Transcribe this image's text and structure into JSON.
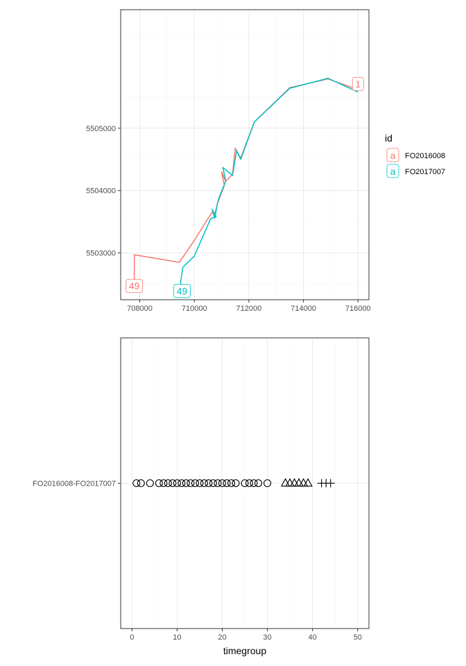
{
  "colors": {
    "FO2016008": "#F8766D",
    "FO2017007": "#00BFC4",
    "grid_major": "#EBEBEB",
    "grid_minor": "#F5F5F5",
    "frame": "#333333",
    "shape": "#000000"
  },
  "chart_data": [
    {
      "type": "line",
      "xlim": [
        707300,
        716400
      ],
      "ylim": [
        5502250,
        5506900
      ],
      "x_ticks": [
        708000,
        710000,
        712000,
        714000,
        716000
      ],
      "x_tick_labels": [
        "708000",
        "710000",
        "712000",
        "714000",
        "716000"
      ],
      "y_ticks": [
        5503000,
        5504000,
        5505000
      ],
      "y_tick_labels": [
        "5503000",
        "5504000",
        "5505000"
      ],
      "grid": true,
      "legend": {
        "title": "id",
        "placement": "right",
        "key_glyph": "a",
        "entries": [
          "FO2016008",
          "FO2017007"
        ]
      },
      "series": [
        {
          "name": "FO2016008",
          "x": [
            716000,
            714900,
            713500,
            712200,
            711700,
            711500,
            711400,
            711150,
            711000,
            711100,
            710900,
            710850,
            710750,
            710650,
            710500,
            710000,
            709450,
            707800,
            707800
          ],
          "y": [
            5505620,
            5505790,
            5505650,
            5505100,
            5504520,
            5504680,
            5504260,
            5504150,
            5504300,
            5504080,
            5503850,
            5503800,
            5503620,
            5503650,
            5503550,
            5503200,
            5502850,
            5502970,
            5502470
          ]
        },
        {
          "name": "FO2017007",
          "x": [
            716000,
            714900,
            713500,
            712200,
            711700,
            711550,
            711400,
            711050,
            711150,
            710900,
            710850,
            710750,
            710650,
            710800,
            710600,
            710250,
            710000,
            709580,
            709500,
            709500
          ],
          "y": [
            5505580,
            5505800,
            5505640,
            5505100,
            5504500,
            5504640,
            5504240,
            5504370,
            5504150,
            5503880,
            5503800,
            5503560,
            5503700,
            5503580,
            5503550,
            5503200,
            5502950,
            5502770,
            5502540,
            5502320
          ]
        }
      ],
      "labels": [
        {
          "text": "1",
          "series": "FO2016008",
          "x": 716000,
          "y": 5505710
        },
        {
          "text": "49",
          "series": "FO2016008",
          "x": 707800,
          "y": 5502470
        },
        {
          "text": "49",
          "series": "FO2017007",
          "x": 709550,
          "y": 5502390
        }
      ]
    },
    {
      "type": "scatter",
      "xlim": [
        -2.5,
        52.5
      ],
      "x_ticks": [
        0,
        10,
        20,
        30,
        40,
        50
      ],
      "x_tick_labels": [
        "0",
        "10",
        "20",
        "30",
        "40",
        "50"
      ],
      "xlabel": "timegroup",
      "y_categories": [
        "FO2016008-FO2017007"
      ],
      "grid": true,
      "series": [
        {
          "shape": "circle",
          "x": [
            1,
            2,
            4,
            6,
            7,
            8,
            9,
            10,
            11,
            12,
            13,
            14,
            15,
            16,
            17,
            18,
            19,
            20,
            21,
            22,
            23,
            25,
            26,
            27,
            28,
            30
          ]
        },
        {
          "shape": "triangle",
          "x": [
            34,
            35,
            36,
            37,
            38,
            39
          ]
        },
        {
          "shape": "plus",
          "x": [
            42,
            43,
            44
          ]
        }
      ]
    }
  ]
}
